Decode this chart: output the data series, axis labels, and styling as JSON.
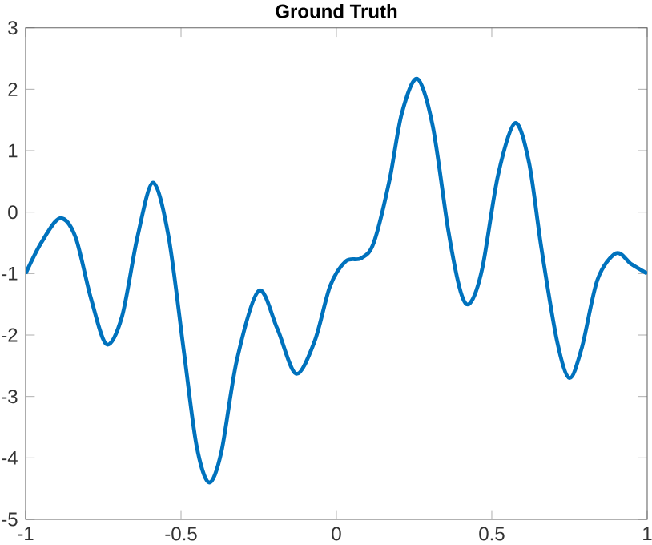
{
  "chart_data": {
    "type": "line",
    "title": "Ground Truth",
    "xlim": [
      -1,
      1
    ],
    "xticks": [
      -1,
      -0.5,
      0,
      0.5,
      1
    ],
    "ylim": [
      -5,
      3
    ],
    "yticks": [
      -5,
      -4,
      -3,
      -2,
      -1,
      0,
      1,
      2,
      3
    ],
    "grid": false,
    "marker": "none",
    "line_style": "solid",
    "series": [
      {
        "color": "#0072bd",
        "x": [
          -1,
          -0.95,
          -0.89,
          -0.84,
          -0.79,
          -0.74,
          -0.69,
          -0.64,
          -0.59,
          -0.54,
          -0.49,
          -0.45,
          -0.41,
          -0.37,
          -0.32,
          -0.25,
          -0.19,
          -0.13,
          -0.07,
          -0.02,
          0.03,
          0.08,
          0.12,
          0.17,
          0.21,
          0.26,
          0.31,
          0.36,
          0.4,
          0.43,
          0.47,
          0.52,
          0.575,
          0.62,
          0.66,
          0.71,
          0.75,
          0.79,
          0.84,
          0.9,
          0.95,
          1
        ],
        "values": [
          -1,
          -0.5,
          -0.1,
          -0.4,
          -1.4,
          -2.15,
          -1.7,
          -0.4,
          0.48,
          -0.4,
          -2.3,
          -3.8,
          -4.4,
          -3.9,
          -2.4,
          -1.28,
          -1.9,
          -2.63,
          -2.1,
          -1.2,
          -0.8,
          -0.75,
          -0.5,
          0.5,
          1.6,
          2.17,
          1.4,
          -0.3,
          -1.3,
          -1.48,
          -0.9,
          0.6,
          1.45,
          0.8,
          -0.6,
          -2.1,
          -2.7,
          -2.2,
          -1.1,
          -0.67,
          -0.85,
          -1
        ]
      }
    ]
  }
}
